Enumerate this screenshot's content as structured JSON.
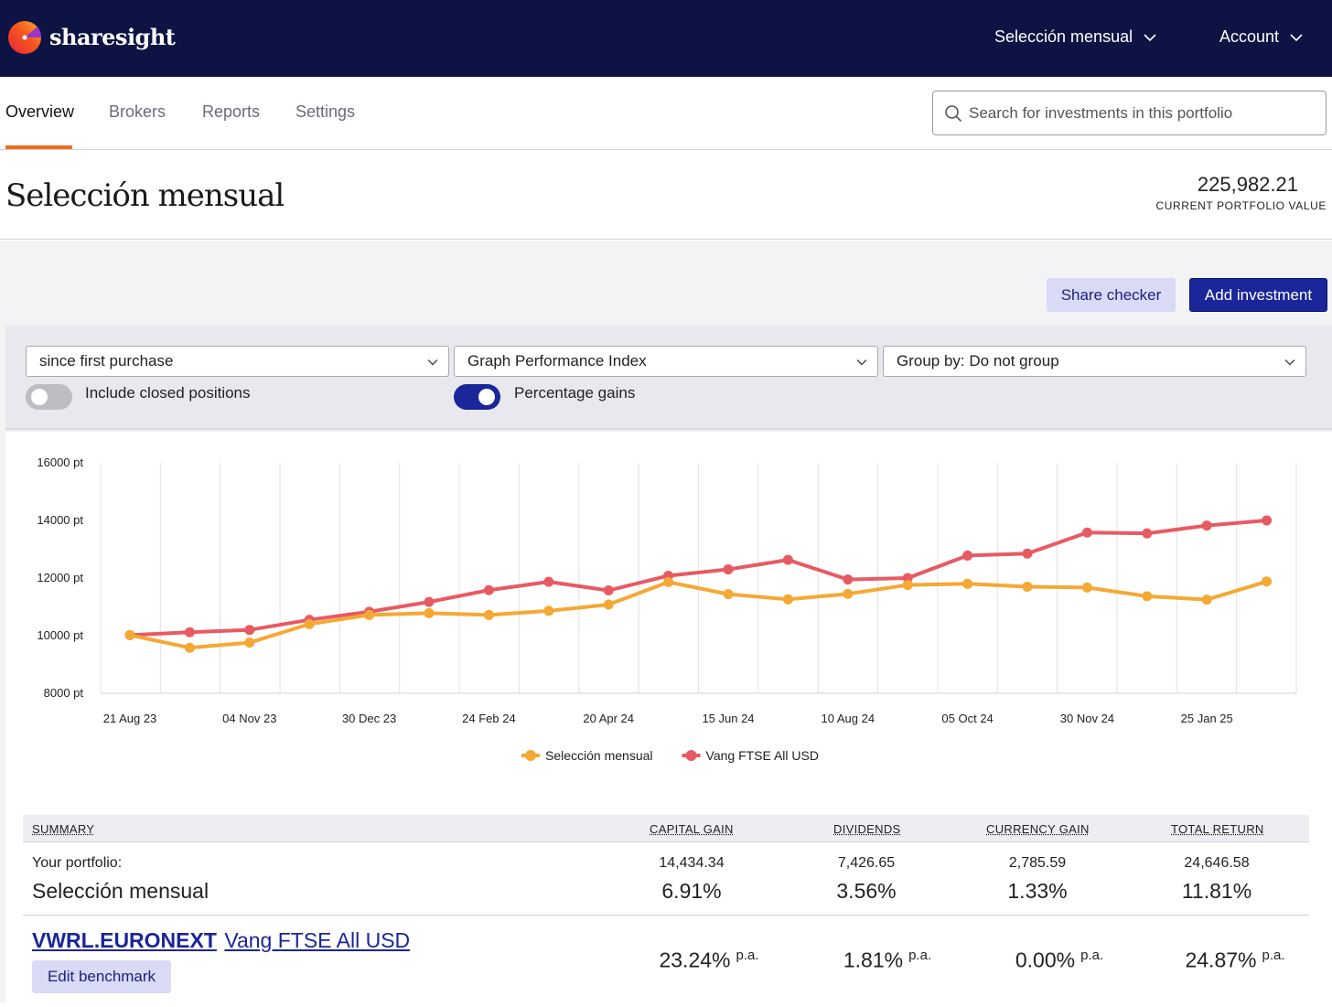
{
  "brand": {
    "name": "sharesight"
  },
  "topbar": {
    "portfolio_menu": "Selección mensual",
    "account_menu": "Account"
  },
  "tabs": [
    {
      "label": "Overview",
      "active": true
    },
    {
      "label": "Brokers",
      "active": false
    },
    {
      "label": "Reports",
      "active": false
    },
    {
      "label": "Settings",
      "active": false
    }
  ],
  "search": {
    "placeholder": "Search for investments in this portfolio"
  },
  "header": {
    "title": "Selección mensual",
    "portfolio_value": "225,982.21",
    "portfolio_value_label": "CURRENT PORTFOLIO VALUE"
  },
  "actions": {
    "share_checker": "Share checker",
    "add_investment": "Add investment"
  },
  "filters": {
    "period": "since first purchase",
    "graph_type": "Graph Performance Index",
    "group_by": "Group by: Do not group",
    "include_closed_label": "Include closed positions",
    "include_closed_on": false,
    "percentage_gains_label": "Percentage gains",
    "percentage_gains_on": true
  },
  "chart_data": {
    "type": "line",
    "title": "",
    "xlabel": "",
    "ylabel": "",
    "ylim": [
      8000,
      16000
    ],
    "yticks": [
      8000,
      10000,
      12000,
      14000,
      16000
    ],
    "ytick_labels": [
      "8000 pt",
      "10000 pt",
      "12000 pt",
      "14000 pt",
      "16000 pt"
    ],
    "x_tick_labels": [
      "21 Aug 23",
      "04 Nov 23",
      "30 Dec 23",
      "24 Feb 24",
      "20 Apr 24",
      "15 Jun 24",
      "10 Aug 24",
      "05 Oct 24",
      "30 Nov 24",
      "25 Jan 25"
    ],
    "grid": true,
    "legend_position": "bottom",
    "series": [
      {
        "name": "Selección mensual",
        "color": "#f5a834",
        "values": [
          10020,
          9580,
          9760,
          10400,
          10720,
          10780,
          10720,
          10860,
          11080,
          11860,
          11440,
          11260,
          11450,
          11760,
          11800,
          11700,
          11670,
          11370,
          11250,
          11880
        ]
      },
      {
        "name": "Vang FTSE All USD",
        "color": "#e85a62",
        "values": [
          10020,
          10120,
          10200,
          10550,
          10830,
          11170,
          11580,
          11870,
          11570,
          12080,
          12300,
          12630,
          11950,
          12000,
          12780,
          12850,
          13580,
          13550,
          13820,
          14000
        ]
      }
    ]
  },
  "summary": {
    "headers": [
      "SUMMARY",
      "CAPITAL GAIN",
      "DIVIDENDS",
      "CURRENCY GAIN",
      "TOTAL RETURN"
    ],
    "portfolio_label": "Your portfolio:",
    "portfolio_name": "Selección mensual",
    "portfolio_amounts": [
      "14,434.34",
      "7,426.65",
      "2,785.59",
      "24,646.58"
    ],
    "portfolio_percents": [
      "6.91%",
      "3.56%",
      "1.33%",
      "11.81%"
    ],
    "benchmark_code": "VWRL.EURONEXT",
    "benchmark_name": "Vang FTSE All USD",
    "benchmark_percents": [
      "23.24%",
      "1.81%",
      "0.00%",
      "24.87%"
    ],
    "pa_label": "p.a.",
    "edit_benchmark": "Edit benchmark"
  }
}
